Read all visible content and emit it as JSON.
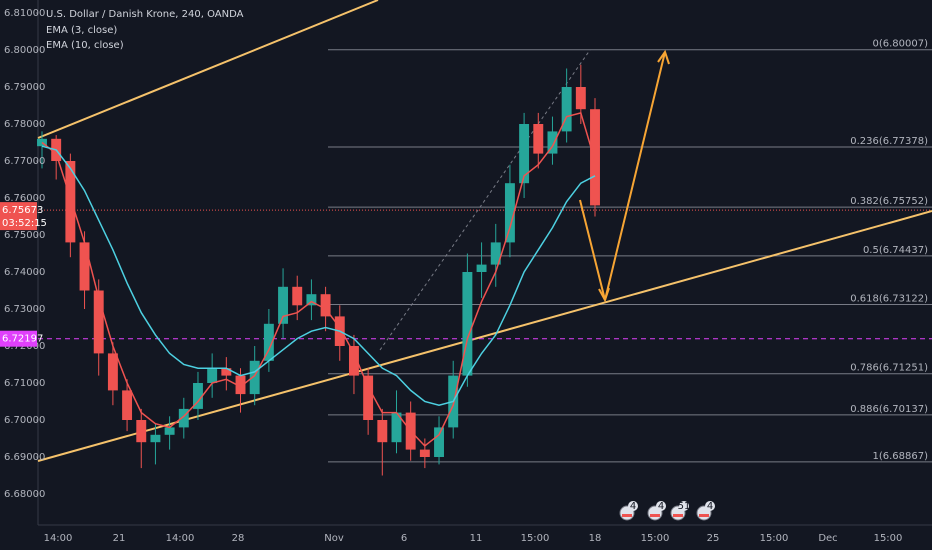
{
  "chart_data": {
    "type": "candlestick",
    "title": "U.S. Dollar / Danish Krone, 240, OANDA",
    "indicators": [
      {
        "name": "EMA (3, close)",
        "color": "#ef5350",
        "values": [
          6.775,
          6.772,
          6.76,
          6.748,
          6.733,
          6.72,
          6.71,
          6.702,
          6.699,
          6.698,
          6.701,
          6.705,
          6.71,
          6.711,
          6.709,
          6.712,
          6.719,
          6.728,
          6.729,
          6.732,
          6.73,
          6.725,
          6.718,
          6.709,
          6.702,
          6.702,
          6.697,
          6.693,
          6.696,
          6.704,
          6.722,
          6.732,
          6.74,
          6.752,
          6.766,
          6.769,
          6.774,
          6.782,
          6.783,
          6.77
        ]
      },
      {
        "name": "EMA (10, close)",
        "color": "#4dd0e1",
        "values": [
          6.774,
          6.773,
          6.768,
          6.762,
          6.754,
          6.746,
          6.737,
          6.729,
          6.723,
          6.718,
          6.715,
          6.714,
          6.714,
          6.714,
          6.712,
          6.713,
          6.716,
          6.719,
          6.722,
          6.724,
          6.725,
          6.724,
          6.722,
          6.718,
          6.714,
          6.712,
          6.708,
          6.705,
          6.704,
          6.705,
          6.712,
          6.718,
          6.723,
          6.731,
          6.74,
          6.746,
          6.752,
          6.759,
          6.764,
          6.766
        ]
      }
    ],
    "up_color": "#26a69a",
    "down_color": "#ef5350",
    "ohlc": [
      [
        6.774,
        6.778,
        6.768,
        6.776
      ],
      [
        6.776,
        6.777,
        6.765,
        6.77
      ],
      [
        6.77,
        6.772,
        6.744,
        6.748
      ],
      [
        6.748,
        6.751,
        6.73,
        6.735
      ],
      [
        6.735,
        6.738,
        6.712,
        6.718
      ],
      [
        6.718,
        6.721,
        6.704,
        6.708
      ],
      [
        6.708,
        6.711,
        6.697,
        6.7
      ],
      [
        6.7,
        6.703,
        6.687,
        6.694
      ],
      [
        6.694,
        6.699,
        6.688,
        6.696
      ],
      [
        6.696,
        6.701,
        6.692,
        6.698
      ],
      [
        6.698,
        6.706,
        6.695,
        6.703
      ],
      [
        6.703,
        6.713,
        6.7,
        6.71
      ],
      [
        6.71,
        6.718,
        6.706,
        6.714
      ],
      [
        6.714,
        6.717,
        6.708,
        6.712
      ],
      [
        6.712,
        6.714,
        6.702,
        6.707
      ],
      [
        6.707,
        6.72,
        6.704,
        6.716
      ],
      [
        6.716,
        6.73,
        6.713,
        6.726
      ],
      [
        6.726,
        6.741,
        6.722,
        6.736
      ],
      [
        6.736,
        6.739,
        6.727,
        6.731
      ],
      [
        6.731,
        6.738,
        6.727,
        6.734
      ],
      [
        6.734,
        6.736,
        6.724,
        6.728
      ],
      [
        6.728,
        6.731,
        6.716,
        6.72
      ],
      [
        6.72,
        6.723,
        6.707,
        6.712
      ],
      [
        6.712,
        6.714,
        6.696,
        6.7
      ],
      [
        6.7,
        6.703,
        6.685,
        6.694
      ],
      [
        6.694,
        6.708,
        6.691,
        6.702
      ],
      [
        6.702,
        6.705,
        6.689,
        6.692
      ],
      [
        6.692,
        6.695,
        6.687,
        6.69
      ],
      [
        6.69,
        6.701,
        6.688,
        6.698
      ],
      [
        6.698,
        6.716,
        6.695,
        6.712
      ],
      [
        6.712,
        6.745,
        6.709,
        6.74
      ],
      [
        6.74,
        6.748,
        6.733,
        6.742
      ],
      [
        6.742,
        6.753,
        6.736,
        6.748
      ],
      [
        6.748,
        6.769,
        6.744,
        6.764
      ],
      [
        6.764,
        6.783,
        6.76,
        6.78
      ],
      [
        6.78,
        6.783,
        6.768,
        6.772
      ],
      [
        6.772,
        6.782,
        6.769,
        6.778
      ],
      [
        6.778,
        6.795,
        6.775,
        6.79
      ],
      [
        6.79,
        6.796,
        6.78,
        6.784
      ],
      [
        6.784,
        6.787,
        6.755,
        6.758
      ]
    ],
    "xticks": [
      "14:00",
      "21",
      "14:00",
      "28",
      "Nov",
      "6",
      "11",
      "15:00",
      "18",
      "15:00",
      "25",
      "15:00",
      "Dec",
      "15:00"
    ],
    "ylim": [
      6.68,
      6.81
    ],
    "yticks": [
      {
        "value": 6.68,
        "label": "6.68000"
      },
      {
        "value": 6.69,
        "label": "6.69000"
      },
      {
        "value": 6.7,
        "label": "6.70000"
      },
      {
        "value": 6.71,
        "label": "6.71000"
      },
      {
        "value": 6.72,
        "label": "6.72000"
      },
      {
        "value": 6.73,
        "label": "6.73000"
      },
      {
        "value": 6.74,
        "label": "6.74000"
      },
      {
        "value": 6.75,
        "label": "6.75000"
      },
      {
        "value": 6.76,
        "label": "6.76000"
      },
      {
        "value": 6.77,
        "label": "6.77000"
      },
      {
        "value": 6.78,
        "label": "6.78000"
      },
      {
        "value": 6.79,
        "label": "6.79000"
      },
      {
        "value": 6.8,
        "label": "6.80000"
      },
      {
        "value": 6.81,
        "label": "6.81000"
      }
    ],
    "fib_levels": [
      {
        "value": 6.80007,
        "label": "0(6.80007)"
      },
      {
        "value": 6.77378,
        "label": "0.236(6.77378)"
      },
      {
        "value": 6.75752,
        "label": "0.382(6.75752)"
      },
      {
        "value": 6.74437,
        "label": "0.5(6.74437)"
      },
      {
        "value": 6.73122,
        "label": "0.618(6.73122)"
      },
      {
        "value": 6.71251,
        "label": "0.786(6.71251)"
      },
      {
        "value": 6.70137,
        "label": "0.886(6.70137)"
      },
      {
        "value": 6.68867,
        "label": "1(6.68867)"
      }
    ],
    "last_price": {
      "value": 6.75673,
      "label": "6.75673",
      "countdown": "03:52:15"
    },
    "alert_line": {
      "value": 6.72197,
      "label": "6.72197"
    },
    "events": [
      "4",
      "4",
      "51",
      "4"
    ]
  }
}
